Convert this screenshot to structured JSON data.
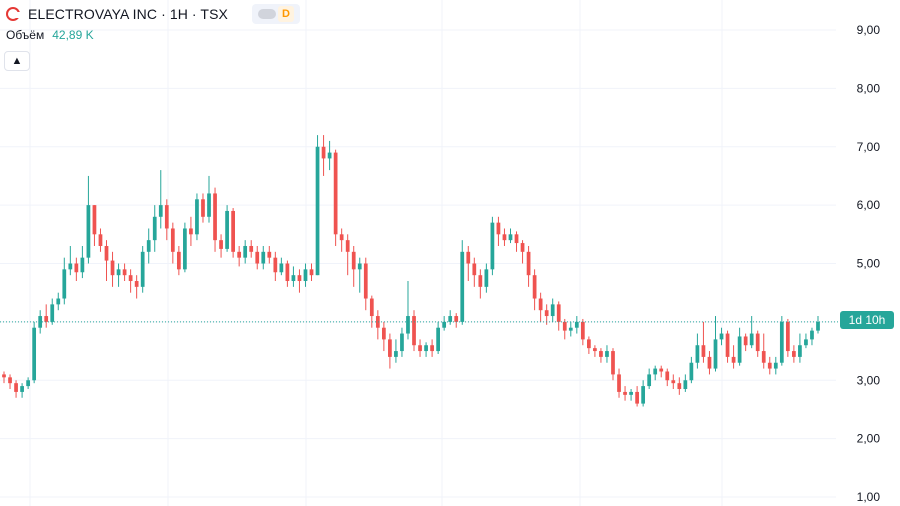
{
  "header": {
    "title": "ELECTROVAYA INC · 1H · TSX",
    "badge": "D",
    "volume_label": "Объём",
    "volume_value": "42,89 K",
    "countdown": "1d 10h"
  },
  "colors": {
    "up": "#26a69a",
    "down": "#ef5350",
    "grid": "#f0f3fa",
    "current_line": "#26a69a"
  },
  "chart_data": {
    "type": "candlestick",
    "title": "",
    "xlabel": "",
    "ylabel": "",
    "ylim": [
      1.0,
      9.0
    ],
    "y_ticks": [
      "1,00",
      "2,00",
      "3,00",
      "4,00",
      "5,00",
      "6,00",
      "7,00",
      "8,00",
      "9,00"
    ],
    "y_tick_values": [
      1,
      2,
      3,
      4,
      5,
      6,
      7,
      8,
      9
    ],
    "grid": true,
    "current_price": 4.0,
    "candles": [
      [
        3.1,
        3.05,
        3.15,
        2.95
      ],
      [
        3.05,
        2.95,
        3.1,
        2.85
      ],
      [
        2.95,
        2.8,
        3.0,
        2.7
      ],
      [
        2.8,
        2.9,
        2.95,
        2.7
      ],
      [
        2.9,
        3.0,
        3.05,
        2.85
      ],
      [
        3.0,
        3.9,
        4.0,
        2.95
      ],
      [
        3.9,
        4.1,
        4.2,
        3.8
      ],
      [
        4.1,
        4.0,
        4.3,
        3.9
      ],
      [
        4.0,
        4.3,
        4.4,
        3.95
      ],
      [
        4.3,
        4.4,
        4.5,
        4.2
      ],
      [
        4.4,
        4.9,
        5.1,
        4.3
      ],
      [
        4.9,
        5.0,
        5.3,
        4.8
      ],
      [
        5.0,
        4.85,
        5.1,
        4.7
      ],
      [
        4.85,
        5.1,
        5.3,
        4.75
      ],
      [
        5.1,
        6.0,
        6.5,
        5.0
      ],
      [
        6.0,
        5.5,
        6.0,
        5.3
      ],
      [
        5.5,
        5.3,
        5.6,
        5.2
      ],
      [
        5.3,
        5.05,
        5.4,
        4.7
      ],
      [
        5.05,
        4.8,
        5.2,
        4.6
      ],
      [
        4.8,
        4.9,
        5.0,
        4.6
      ],
      [
        4.9,
        4.8,
        5.0,
        4.7
      ],
      [
        4.8,
        4.7,
        4.9,
        4.5
      ],
      [
        4.7,
        4.6,
        4.8,
        4.4
      ],
      [
        4.6,
        5.2,
        5.3,
        4.5
      ],
      [
        5.2,
        5.4,
        5.6,
        5.0
      ],
      [
        5.4,
        5.8,
        6.0,
        5.2
      ],
      [
        5.8,
        6.0,
        6.6,
        5.6
      ],
      [
        6.0,
        5.6,
        6.1,
        5.4
      ],
      [
        5.6,
        5.2,
        5.7,
        5.0
      ],
      [
        5.2,
        4.9,
        5.3,
        4.8
      ],
      [
        4.9,
        5.6,
        5.7,
        4.85
      ],
      [
        5.6,
        5.5,
        5.8,
        5.3
      ],
      [
        5.5,
        6.1,
        6.2,
        5.4
      ],
      [
        6.1,
        5.8,
        6.2,
        5.7
      ],
      [
        5.8,
        6.2,
        6.5,
        5.7
      ],
      [
        6.2,
        5.4,
        6.3,
        5.2
      ],
      [
        5.4,
        5.25,
        5.5,
        5.1
      ],
      [
        5.25,
        5.9,
        6.0,
        5.2
      ],
      [
        5.9,
        5.2,
        5.95,
        5.1
      ],
      [
        5.2,
        5.1,
        5.3,
        4.95
      ],
      [
        5.1,
        5.3,
        5.4,
        5.0
      ],
      [
        5.3,
        5.2,
        5.4,
        5.1
      ],
      [
        5.2,
        5.0,
        5.3,
        4.9
      ],
      [
        5.0,
        5.2,
        5.3,
        4.9
      ],
      [
        5.2,
        5.1,
        5.3,
        5.0
      ],
      [
        5.1,
        4.85,
        5.2,
        4.7
      ],
      [
        4.85,
        5.0,
        5.1,
        4.8
      ],
      [
        5.0,
        4.7,
        5.05,
        4.6
      ],
      [
        4.7,
        4.8,
        4.95,
        4.6
      ],
      [
        4.8,
        4.7,
        4.9,
        4.5
      ],
      [
        4.7,
        4.9,
        5.0,
        4.6
      ],
      [
        4.9,
        4.8,
        5.0,
        4.7
      ],
      [
        4.8,
        7.0,
        7.2,
        4.8
      ],
      [
        7.0,
        6.8,
        7.2,
        6.5
      ],
      [
        6.8,
        6.9,
        7.1,
        6.6
      ],
      [
        6.9,
        5.5,
        6.95,
        5.3
      ],
      [
        5.5,
        5.4,
        5.6,
        5.2
      ],
      [
        5.4,
        5.2,
        5.5,
        4.8
      ],
      [
        5.2,
        4.9,
        5.3,
        4.6
      ],
      [
        4.9,
        5.0,
        5.1,
        4.5
      ],
      [
        5.0,
        4.4,
        5.1,
        4.2
      ],
      [
        4.4,
        4.1,
        4.45,
        3.9
      ],
      [
        4.1,
        3.9,
        4.2,
        3.7
      ],
      [
        3.9,
        3.7,
        4.0,
        3.5
      ],
      [
        3.7,
        3.4,
        3.8,
        3.2
      ],
      [
        3.4,
        3.5,
        3.7,
        3.3
      ],
      [
        3.5,
        3.8,
        3.9,
        3.4
      ],
      [
        3.8,
        4.1,
        4.7,
        3.7
      ],
      [
        4.1,
        3.6,
        4.2,
        3.5
      ],
      [
        3.6,
        3.5,
        3.7,
        3.4
      ],
      [
        3.5,
        3.6,
        3.65,
        3.4
      ],
      [
        3.6,
        3.5,
        3.7,
        3.4
      ],
      [
        3.5,
        3.9,
        4.0,
        3.45
      ],
      [
        3.9,
        4.0,
        4.1,
        3.85
      ],
      [
        4.0,
        4.1,
        4.2,
        3.95
      ],
      [
        4.1,
        4.0,
        4.15,
        3.9
      ],
      [
        4.0,
        5.2,
        5.4,
        3.95
      ],
      [
        5.2,
        5.0,
        5.3,
        4.7
      ],
      [
        5.0,
        4.8,
        5.1,
        4.6
      ],
      [
        4.8,
        4.6,
        4.9,
        4.4
      ],
      [
        4.6,
        4.9,
        5.0,
        4.5
      ],
      [
        4.9,
        5.7,
        5.8,
        4.8
      ],
      [
        5.7,
        5.5,
        5.8,
        5.3
      ],
      [
        5.5,
        5.4,
        5.6,
        5.3
      ],
      [
        5.4,
        5.5,
        5.6,
        5.35
      ],
      [
        5.5,
        5.35,
        5.55,
        5.2
      ],
      [
        5.35,
        5.2,
        5.4,
        5.0
      ],
      [
        5.2,
        4.8,
        5.3,
        4.6
      ],
      [
        4.8,
        4.4,
        4.9,
        4.2
      ],
      [
        4.4,
        4.2,
        4.5,
        4.0
      ],
      [
        4.2,
        4.1,
        4.3,
        3.95
      ],
      [
        4.1,
        4.3,
        4.4,
        4.0
      ],
      [
        4.3,
        4.0,
        4.35,
        3.85
      ],
      [
        4.0,
        3.85,
        4.05,
        3.7
      ],
      [
        3.85,
        3.9,
        4.0,
        3.75
      ],
      [
        3.9,
        4.0,
        4.1,
        3.8
      ],
      [
        4.0,
        3.7,
        4.05,
        3.6
      ],
      [
        3.7,
        3.55,
        3.75,
        3.45
      ],
      [
        3.55,
        3.5,
        3.6,
        3.4
      ],
      [
        3.5,
        3.4,
        3.55,
        3.3
      ],
      [
        3.4,
        3.5,
        3.6,
        3.3
      ],
      [
        3.5,
        3.1,
        3.55,
        3.0
      ],
      [
        3.1,
        2.8,
        3.2,
        2.7
      ],
      [
        2.8,
        2.75,
        2.9,
        2.65
      ],
      [
        2.75,
        2.8,
        2.85,
        2.65
      ],
      [
        2.8,
        2.6,
        2.9,
        2.55
      ],
      [
        2.6,
        2.9,
        3.0,
        2.55
      ],
      [
        2.9,
        3.1,
        3.2,
        2.85
      ],
      [
        3.1,
        3.2,
        3.25,
        3.0
      ],
      [
        3.2,
        3.15,
        3.25,
        3.05
      ],
      [
        3.15,
        3.0,
        3.2,
        2.9
      ],
      [
        3.0,
        2.95,
        3.1,
        2.85
      ],
      [
        2.95,
        2.85,
        3.05,
        2.75
      ],
      [
        2.85,
        3.0,
        3.1,
        2.8
      ],
      [
        3.0,
        3.3,
        3.4,
        2.95
      ],
      [
        3.3,
        3.6,
        3.8,
        3.2
      ],
      [
        3.6,
        3.4,
        4.0,
        3.3
      ],
      [
        3.4,
        3.2,
        3.5,
        3.1
      ],
      [
        3.2,
        3.7,
        4.1,
        3.15
      ],
      [
        3.7,
        3.8,
        3.9,
        3.6
      ],
      [
        3.8,
        3.4,
        3.85,
        3.3
      ],
      [
        3.4,
        3.3,
        3.6,
        3.2
      ],
      [
        3.3,
        3.75,
        3.9,
        3.25
      ],
      [
        3.75,
        3.6,
        3.8,
        3.5
      ],
      [
        3.6,
        3.8,
        4.1,
        3.55
      ],
      [
        3.8,
        3.5,
        3.85,
        3.4
      ],
      [
        3.5,
        3.3,
        3.8,
        3.2
      ],
      [
        3.3,
        3.2,
        3.4,
        3.1
      ],
      [
        3.2,
        3.3,
        3.4,
        3.1
      ],
      [
        3.3,
        4.0,
        4.1,
        3.25
      ],
      [
        4.0,
        3.5,
        4.05,
        3.4
      ],
      [
        3.5,
        3.4,
        3.6,
        3.3
      ],
      [
        3.4,
        3.6,
        3.8,
        3.3
      ],
      [
        3.6,
        3.7,
        3.8,
        3.55
      ],
      [
        3.7,
        3.85,
        3.9,
        3.6
      ],
      [
        3.85,
        4.0,
        4.1,
        3.8
      ]
    ]
  }
}
